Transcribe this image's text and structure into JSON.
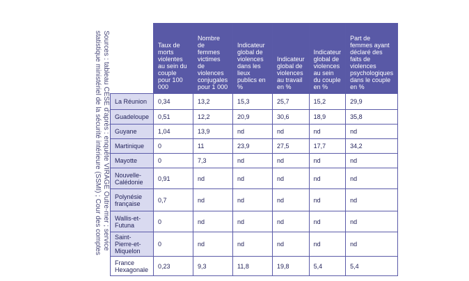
{
  "source_note": "Sources : tableau CESE d'après : enquête VIRAGE Outre-mer ; service statistique ministériel de la sécurité intérieure (SSMI) ; Cour des comptes",
  "table": {
    "headers": [
      "Taux de morts violentes au sein du couple pour 100 000",
      "Nombre de femmes victimes de violences conjugales pour 1 000",
      "Indicateur global de violences dans les lieux publics en %",
      "Indicateur global de violences au travail en %",
      "Indicateur global de violences au sein du couple en %",
      "Part de femmes ayant déclaré des faits de violences psychologiques dans le couple en %"
    ],
    "rows": [
      {
        "label": "La Réunion",
        "values": [
          "0,34",
          "13,2",
          "15,3",
          "25,7",
          "15,2",
          "29,9"
        ]
      },
      {
        "label": "Guadeloupe",
        "values": [
          "0,51",
          "12,2",
          "20,9",
          "30,6",
          "18,9",
          "35,8"
        ]
      },
      {
        "label": "Guyane",
        "values": [
          "1,04",
          "13,9",
          "nd",
          "nd",
          "nd",
          "nd"
        ]
      },
      {
        "label": "Martinique",
        "values": [
          "0",
          "11",
          "23,9",
          "27,5",
          "17,7",
          "34,2"
        ]
      },
      {
        "label": "Mayotte",
        "values": [
          "0",
          "7,3",
          "nd",
          "nd",
          "nd",
          "nd"
        ]
      },
      {
        "label": "Nouvelle-Calédonie",
        "values": [
          "0,91",
          "nd",
          "nd",
          "nd",
          "nd",
          "nd"
        ]
      },
      {
        "label": "Polynésie française",
        "values": [
          "0,7",
          "nd",
          "nd",
          "nd",
          "nd",
          "nd"
        ]
      },
      {
        "label": "Wallis-et-Futuna",
        "values": [
          "0",
          "nd",
          "nd",
          "nd",
          "nd",
          "nd"
        ]
      },
      {
        "label": "Saint-Pierre-et-Miquelon",
        "values": [
          "0",
          "nd",
          "nd",
          "nd",
          "nd",
          "nd"
        ]
      },
      {
        "label": "France Hexagonale",
        "values": [
          "0,23",
          "9,3",
          "11,8",
          "19,8",
          "5,4",
          "5,4"
        ]
      }
    ]
  }
}
